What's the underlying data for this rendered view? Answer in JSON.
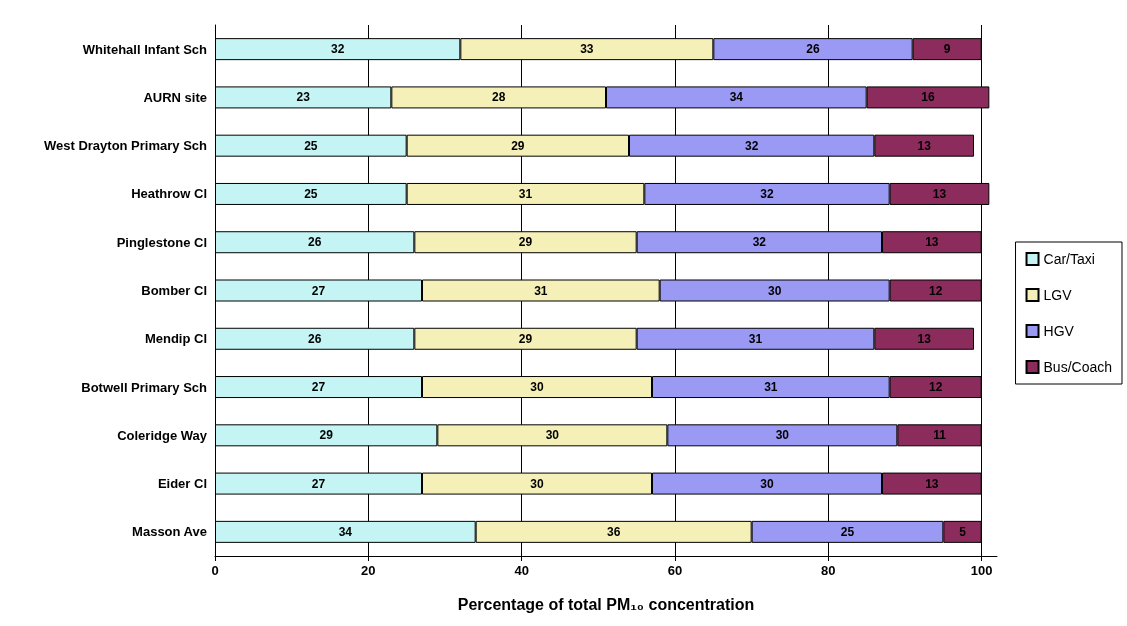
{
  "chart_data": {
    "type": "bar",
    "orientation": "horizontal",
    "stacked": true,
    "xlabel": "Percentage of total PM₁₀ concentration",
    "categories": [
      "Whitehall Infant Sch",
      "AURN site",
      "West Drayton Primary Sch",
      "Heathrow Cl",
      "Pinglestone Cl",
      "Bomber Cl",
      "Mendip Cl",
      "Botwell Primary Sch",
      "Coleridge Way",
      "Eider Cl",
      "Masson Ave"
    ],
    "series": [
      {
        "name": "Car/Taxi",
        "color": "#c4f4f4",
        "values": [
          32,
          23,
          25,
          25,
          26,
          27,
          26,
          27,
          29,
          27,
          34
        ]
      },
      {
        "name": "LGV",
        "color": "#f4f0b8",
        "values": [
          33,
          28,
          29,
          31,
          29,
          31,
          29,
          30,
          30,
          30,
          36
        ]
      },
      {
        "name": "HGV",
        "color": "#9a9af4",
        "values": [
          26,
          34,
          32,
          32,
          32,
          30,
          31,
          31,
          30,
          30,
          25
        ]
      },
      {
        "name": "Bus/Coach",
        "color": "#8c2c5c",
        "values": [
          9,
          16,
          13,
          13,
          13,
          12,
          13,
          12,
          11,
          13,
          5
        ]
      }
    ],
    "xlim": [
      0,
      102
    ],
    "xticks": [
      0,
      20,
      40,
      60,
      80,
      100
    ],
    "grid": "x",
    "legend": "right",
    "data_labels": true
  }
}
